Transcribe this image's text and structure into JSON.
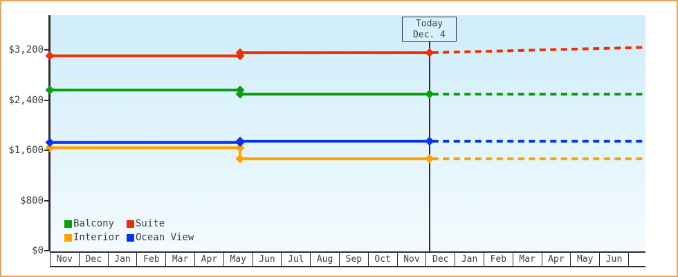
{
  "frame": {
    "border_color": "#e9a45c",
    "axis_color": "#2d2d2d",
    "plot_gradient_top": "#cfedfa",
    "plot_gradient_bottom": "#f4fbfe"
  },
  "chart_data": {
    "type": "line",
    "title": "",
    "xlabel": "",
    "ylabel": "",
    "grid": false,
    "legend_position": "bottom-left-inside",
    "y_axis": {
      "min": 0,
      "max": 3750,
      "ticks": [
        {
          "label": "$0",
          "value": 0
        },
        {
          "label": "$800",
          "value": 800
        },
        {
          "label": "$1,600",
          "value": 1600
        },
        {
          "label": "$2,400",
          "value": 2400
        },
        {
          "label": "$3,200",
          "value": 3200
        }
      ]
    },
    "x_axis": {
      "labels": [
        "Nov",
        "Dec",
        "Jan",
        "Feb",
        "Mar",
        "Apr",
        "May",
        "Jun",
        "Jul",
        "Aug",
        "Sep",
        "Oct",
        "Nov",
        "Dec",
        "Jan",
        "Feb",
        "Mar",
        "Apr",
        "May",
        "Jun"
      ]
    },
    "today": {
      "line1": "Today",
      "line2": "Dec. 4",
      "x": 13.13
    },
    "series": [
      {
        "name": "Interior",
        "color": "#ffa200",
        "history": [
          {
            "x": 0,
            "price": 1640
          },
          {
            "x": 6.58,
            "price": 1640
          },
          {
            "x": 6.58,
            "price": 1465
          },
          {
            "x": 13.13,
            "price": 1465
          }
        ],
        "projection": [
          {
            "x": 13.13,
            "price": 1465
          },
          {
            "x": 20.6,
            "price": 1465
          }
        ],
        "markers": [
          {
            "x": 0,
            "price": 1640
          },
          {
            "x": 6.58,
            "price": 1640
          },
          {
            "x": 6.58,
            "price": 1465
          },
          {
            "x": 13.13,
            "price": 1465
          }
        ]
      },
      {
        "name": "Ocean View",
        "color": "#0535ee",
        "history": [
          {
            "x": 0,
            "price": 1725
          },
          {
            "x": 6.58,
            "price": 1725
          },
          {
            "x": 6.58,
            "price": 1745
          },
          {
            "x": 13.13,
            "price": 1745
          }
        ],
        "projection": [
          {
            "x": 13.13,
            "price": 1745
          },
          {
            "x": 20.6,
            "price": 1745
          }
        ],
        "markers": [
          {
            "x": 0,
            "price": 1725
          },
          {
            "x": 6.58,
            "price": 1725
          },
          {
            "x": 6.58,
            "price": 1745
          },
          {
            "x": 13.13,
            "price": 1745
          }
        ]
      },
      {
        "name": "Balcony",
        "color": "#0aa00f",
        "history": [
          {
            "x": 0,
            "price": 2560
          },
          {
            "x": 6.58,
            "price": 2560
          },
          {
            "x": 6.58,
            "price": 2495
          },
          {
            "x": 13.13,
            "price": 2495
          }
        ],
        "projection": [
          {
            "x": 13.13,
            "price": 2495
          },
          {
            "x": 20.6,
            "price": 2495
          }
        ],
        "markers": [
          {
            "x": 0,
            "price": 2560
          },
          {
            "x": 6.58,
            "price": 2560
          },
          {
            "x": 6.58,
            "price": 2495
          },
          {
            "x": 13.13,
            "price": 2495
          }
        ]
      },
      {
        "name": "Suite",
        "color": "#ed3107",
        "history": [
          {
            "x": 0,
            "price": 3105
          },
          {
            "x": 6.58,
            "price": 3105
          },
          {
            "x": 6.58,
            "price": 3155
          },
          {
            "x": 13.13,
            "price": 3155
          }
        ],
        "projection": [
          {
            "x": 13.13,
            "price": 3155
          },
          {
            "x": 20.6,
            "price": 3240
          }
        ],
        "markers": [
          {
            "x": 0,
            "price": 3105
          },
          {
            "x": 6.58,
            "price": 3105
          },
          {
            "x": 6.58,
            "price": 3155
          },
          {
            "x": 13.13,
            "price": 3155
          }
        ]
      }
    ]
  },
  "legend": {
    "items": [
      {
        "label": "Balcony",
        "color": "#0aa00f"
      },
      {
        "label": "Suite",
        "color": "#ed3107"
      },
      {
        "label": "Interior",
        "color": "#ffa200"
      },
      {
        "label": "Ocean View",
        "color": "#0535ee"
      }
    ]
  }
}
